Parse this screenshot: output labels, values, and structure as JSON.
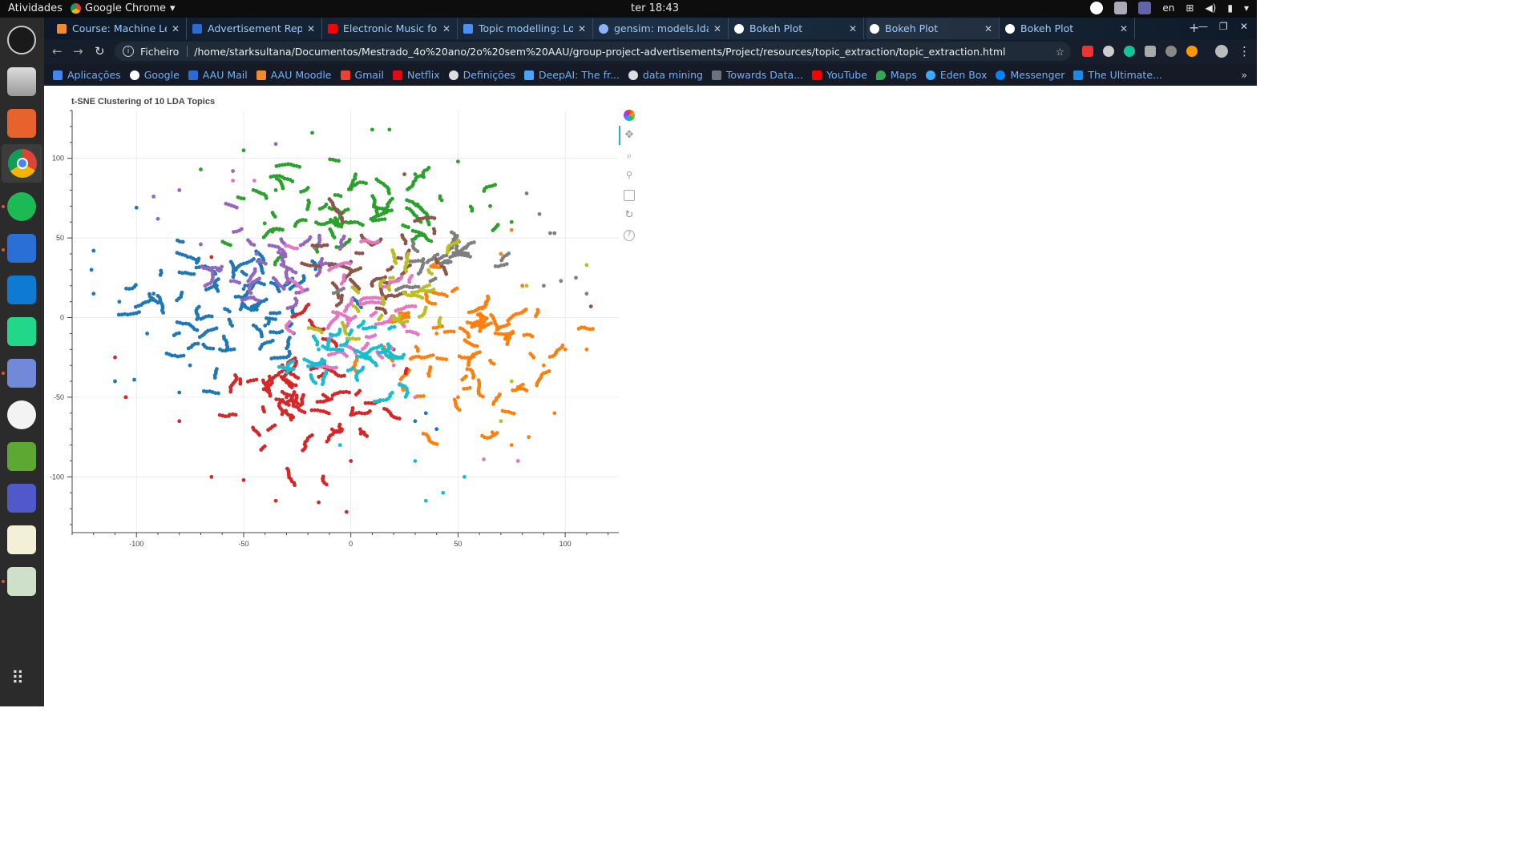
{
  "system": {
    "activities_label": "Atividades",
    "app_label": "Google Chrome",
    "clock": "ter 18:43",
    "lang": "en"
  },
  "tabs": [
    {
      "label": "Course: Machine Lea",
      "icon_color": "#f28b30"
    },
    {
      "label": "Advertisement Repo",
      "icon_color": "#2b6cd4"
    },
    {
      "label": "Electronic Music for",
      "icon_color": "#ff0000"
    },
    {
      "label": "Topic modelling: Loc",
      "icon_color": "#4c8df6"
    },
    {
      "label": "gensim: models.ldam",
      "icon_color": "#8ab4f8"
    },
    {
      "label": "Bokeh Plot",
      "icon_color": "#ffffff"
    },
    {
      "label": "Bokeh Plot",
      "icon_color": "#ffffff"
    },
    {
      "label": "Bokeh Plot",
      "icon_color": "#ffffff"
    }
  ],
  "address": {
    "scheme": "Ficheiro",
    "url": "/home/starksultana/Documentos/Mestrado_4o%20ano/2o%20sem%20AAU/group-project-advertisements/Project/resources/topic_extraction/topic_extraction.html"
  },
  "bookmarks": [
    {
      "label": "Aplicações",
      "icon_color": "#4285f4"
    },
    {
      "label": "Google",
      "icon_color": "#ffffff"
    },
    {
      "label": "AAU Mail",
      "icon_color": "#2b6cd4"
    },
    {
      "label": "AAU Moodle",
      "icon_color": "#f28b30"
    },
    {
      "label": "Gmail",
      "icon_color": "#ea4335"
    },
    {
      "label": "Netflix",
      "icon_color": "#e50914"
    },
    {
      "label": "Definições",
      "icon_color": "#dddddd"
    },
    {
      "label": "DeepAI: The fr...",
      "icon_color": "#4aa3ff"
    },
    {
      "label": "data mining",
      "icon_color": "#dddddd"
    },
    {
      "label": "Towards Data...",
      "icon_color": "#6b7280"
    },
    {
      "label": "YouTube",
      "icon_color": "#ff0000"
    },
    {
      "label": "Maps",
      "icon_color": "#34a853"
    },
    {
      "label": "Eden Box",
      "icon_color": "#3ba9ff"
    },
    {
      "label": "Messenger",
      "icon_color": "#0084ff"
    },
    {
      "label": "The Ultimate...",
      "icon_color": "#1e88e5"
    }
  ],
  "chart_data": {
    "type": "scatter",
    "title": "t-SNE Clustering of 10 LDA Topics",
    "xlabel": "",
    "ylabel": "",
    "xlim": [
      -130,
      125
    ],
    "ylim": [
      -135,
      130
    ],
    "xticks": [
      -100,
      -50,
      0,
      50,
      100
    ],
    "yticks": [
      100,
      50,
      0,
      -50,
      -100
    ],
    "grid": true,
    "legend": "none",
    "series": [
      {
        "color": "#1f77b4",
        "center": [
          -55,
          5
        ],
        "spread": [
          22,
          20
        ],
        "count": 330,
        "sample": [
          [
            -120,
            42
          ],
          [
            -95,
            -10
          ],
          [
            -75,
            -30
          ],
          [
            -110,
            -40
          ],
          [
            -101,
            -39
          ],
          [
            -80,
            -47
          ],
          [
            -62,
            30
          ],
          [
            -40,
            -5
          ],
          [
            -100,
            69
          ],
          [
            -121,
            30
          ],
          [
            -134,
            0
          ],
          [
            -92,
            15
          ],
          [
            -108,
            10
          ],
          [
            -120,
            15
          ],
          [
            -50,
            18
          ],
          [
            30,
            -65
          ],
          [
            35,
            -60
          ],
          [
            40,
            -70
          ]
        ]
      },
      {
        "color": "#ff7f0e",
        "center": [
          55,
          -20
        ],
        "spread": [
          22,
          25
        ],
        "count": 320,
        "sample": [
          [
            70,
            40
          ],
          [
            75,
            55
          ],
          [
            80,
            20
          ],
          [
            100,
            -20
          ],
          [
            110,
            -20
          ],
          [
            95,
            -60
          ],
          [
            75,
            -80
          ],
          [
            83,
            -75
          ],
          [
            66,
            -72
          ],
          [
            90,
            -30
          ],
          [
            40,
            -10
          ],
          [
            50,
            -50
          ],
          [
            60,
            -5
          ]
        ]
      },
      {
        "color": "#2ca02c",
        "center": [
          -5,
          70
        ],
        "spread": [
          30,
          20
        ],
        "count": 280,
        "sample": [
          [
            -18,
            116
          ],
          [
            10,
            118
          ],
          [
            18,
            118
          ],
          [
            -50,
            105
          ],
          [
            -70,
            93
          ],
          [
            50,
            98
          ],
          [
            -35,
            80
          ],
          [
            0,
            60
          ],
          [
            30,
            90
          ],
          [
            65,
            70
          ],
          [
            75,
            60
          ]
        ]
      },
      {
        "color": "#d62728",
        "center": [
          -25,
          -55
        ],
        "spread": [
          20,
          20
        ],
        "count": 300,
        "sample": [
          [
            -65,
            -100
          ],
          [
            -50,
            -102
          ],
          [
            -35,
            -115
          ],
          [
            -15,
            -116
          ],
          [
            -2,
            -122
          ],
          [
            -80,
            -65
          ],
          [
            -105,
            -50
          ],
          [
            -110,
            -25
          ],
          [
            -65,
            38
          ],
          [
            -30,
            -50
          ],
          [
            0,
            -90
          ]
        ]
      },
      {
        "color": "#9467bd",
        "center": [
          -40,
          30
        ],
        "spread": [
          20,
          15
        ],
        "count": 150,
        "sample": [
          [
            -35,
            109
          ],
          [
            -55,
            92
          ],
          [
            -92,
            76
          ],
          [
            -90,
            62
          ],
          [
            -80,
            80
          ],
          [
            -70,
            46
          ],
          [
            -44,
            40
          ],
          [
            -25,
            20
          ]
        ]
      },
      {
        "color": "#8c564b",
        "center": [
          10,
          30
        ],
        "spread": [
          15,
          15
        ],
        "count": 150,
        "sample": [
          [
            112,
            7
          ],
          [
            25,
            90
          ],
          [
            10,
            20
          ],
          [
            0,
            35
          ],
          [
            20,
            -20
          ]
        ]
      },
      {
        "color": "#e377c2",
        "center": [
          0,
          5
        ],
        "spread": [
          15,
          20
        ],
        "count": 170,
        "sample": [
          [
            -55,
            86
          ],
          [
            -45,
            86
          ],
          [
            62,
            -89
          ],
          [
            78,
            -90
          ],
          [
            30,
            -50
          ],
          [
            20,
            -30
          ],
          [
            -10,
            -15
          ]
        ]
      },
      {
        "color": "#7f7f7f",
        "center": [
          45,
          40
        ],
        "spread": [
          15,
          12
        ],
        "count": 110,
        "sample": [
          [
            82,
            78
          ],
          [
            88,
            65
          ],
          [
            93,
            53
          ],
          [
            95,
            53
          ],
          [
            90,
            20
          ],
          [
            98,
            23
          ],
          [
            105,
            25
          ],
          [
            110,
            15
          ]
        ]
      },
      {
        "color": "#bcbd22",
        "center": [
          20,
          10
        ],
        "spread": [
          15,
          15
        ],
        "count": 110,
        "sample": [
          [
            110,
            33
          ],
          [
            82,
            20
          ],
          [
            75,
            -40
          ],
          [
            70,
            -65
          ],
          [
            20,
            40
          ]
        ]
      },
      {
        "color": "#17becf",
        "center": [
          0,
          -25
        ],
        "spread": [
          15,
          12
        ],
        "count": 160,
        "sample": [
          [
            35,
            -115
          ],
          [
            43,
            -110
          ],
          [
            53,
            -100
          ],
          [
            30,
            -90
          ],
          [
            -5,
            -80
          ],
          [
            -15,
            -20
          ]
        ]
      }
    ]
  }
}
